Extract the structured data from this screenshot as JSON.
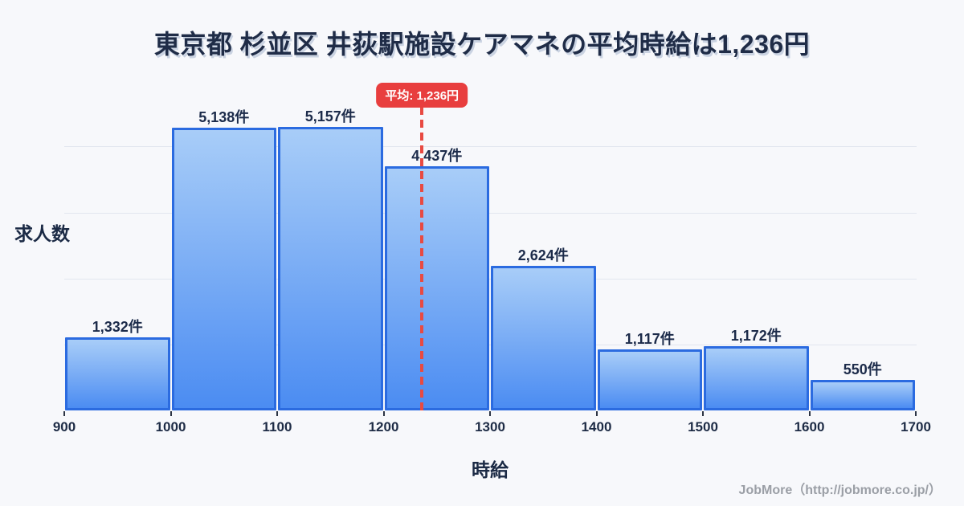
{
  "title": "東京都 杉並区 井荻駅施設ケアマネの平均時給は1,236円",
  "footer": "JobMore（http://jobmore.co.jp/）",
  "axes": {
    "y_title": "求人数",
    "x_title": "時給"
  },
  "average": {
    "label": "平均: 1,236円",
    "value": 1236
  },
  "colors": {
    "background": "#f7f8fb",
    "bar_fill_top": "#a8cdf8",
    "bar_fill_bottom": "#4b8cf2",
    "bar_border": "#2b6be0",
    "accent_red": "#e83e3e",
    "grid": "#e2e6ef",
    "text_dark": "#1c2b4a",
    "footer_gray": "#9b9fa6"
  },
  "chart_data": {
    "type": "bar",
    "title": "東京都 杉並区 井荻駅施設ケアマネの平均時給は1,236円",
    "xlabel": "時給",
    "ylabel": "求人数",
    "bin_edges": [
      900,
      1000,
      1100,
      1200,
      1300,
      1400,
      1500,
      1600,
      1700
    ],
    "x_tick_labels": [
      "900",
      "1000",
      "1100",
      "1200",
      "1300",
      "1400",
      "1500",
      "1600",
      "1700"
    ],
    "categories": [
      "900-1000",
      "1000-1100",
      "1100-1200",
      "1200-1300",
      "1300-1400",
      "1400-1500",
      "1500-1600",
      "1600-1700"
    ],
    "values": [
      1332,
      5138,
      5157,
      4437,
      2624,
      1117,
      1172,
      550
    ],
    "bar_labels": [
      "1,332件",
      "5,138件",
      "5,157件",
      "4,437件",
      "2,624件",
      "1,117件",
      "1,172件",
      "550件"
    ],
    "ylim": [
      0,
      5400
    ],
    "grid": true,
    "gridline_values": [
      1200,
      2400,
      3600,
      4800
    ],
    "legend": "none",
    "average_line": {
      "x": 1236,
      "label": "平均: 1,236円"
    }
  }
}
